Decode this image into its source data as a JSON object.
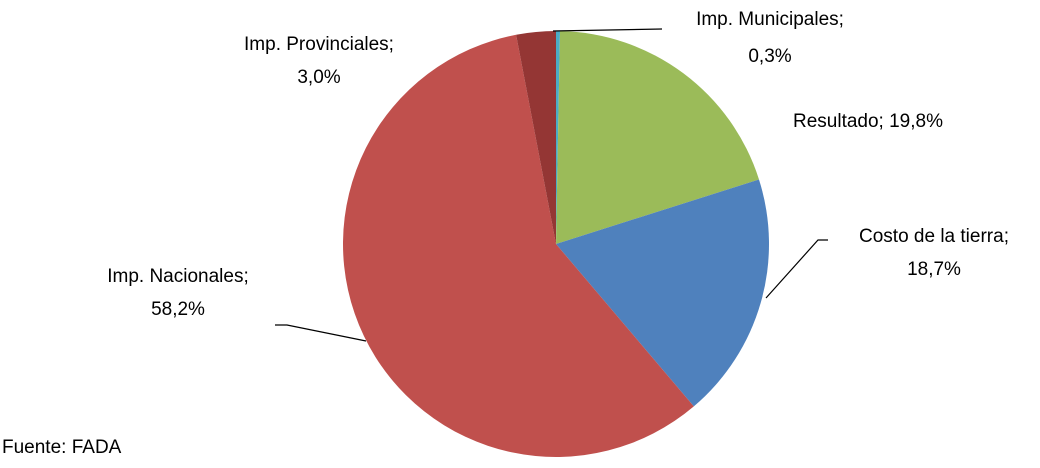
{
  "chart_data": {
    "type": "pie",
    "values": [
      0.3,
      19.8,
      18.7,
      58.2,
      3.0
    ],
    "value_labels": [
      [
        "Imp. Municipales;",
        "0,3%"
      ],
      [
        "Resultado; 19,8%"
      ],
      [
        "Costo de la tierra;",
        "18,7%"
      ],
      [
        "Imp. Nacionales;",
        "58,2%"
      ],
      [
        "Imp. Provinciales;",
        "3,0%"
      ]
    ],
    "colors": [
      "#4bacc6",
      "#9bbb59",
      "#4f81bd",
      "#c0504d",
      "#943634"
    ],
    "source": "Fuente: FADA"
  }
}
